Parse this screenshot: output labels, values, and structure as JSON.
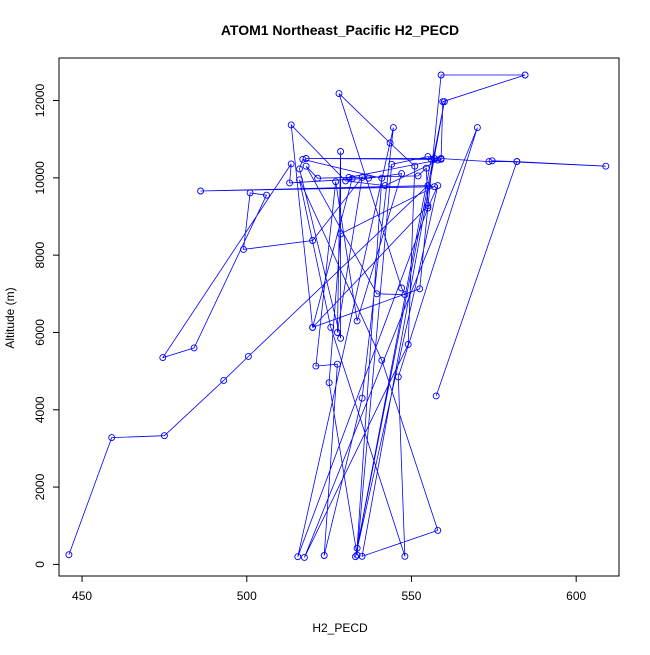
{
  "chart_data": {
    "type": "line",
    "title": "ATOM1 Northeast_Pacific H2_PECD",
    "xlabel": "H2_PECD",
    "ylabel": "Altitude (m)",
    "xlim": [
      443,
      613
    ],
    "ylim": [
      -300,
      13100
    ],
    "xticks": [
      450,
      500,
      550,
      600
    ],
    "yticks": [
      0,
      2000,
      4000,
      6000,
      8000,
      10000,
      12000
    ],
    "grid": false,
    "legend": "none",
    "color": "#0000ff",
    "series": [
      {
        "points": [
          [
            446,
            250
          ],
          [
            459,
            3280
          ],
          [
            475,
            3330
          ],
          [
            493,
            4760
          ],
          [
            500.5,
            5380
          ],
          [
            555,
            9800
          ],
          [
            486,
            9660
          ],
          [
            557,
            9770
          ],
          [
            528.5,
            8550
          ],
          [
            525,
            4700
          ],
          [
            533.5,
            240
          ],
          [
            544,
            10350
          ],
          [
            555,
            10550
          ],
          [
            559,
            10480
          ],
          [
            542,
            9800
          ],
          [
            530,
            9920
          ],
          [
            513.5,
            11370
          ],
          [
            520,
            6130
          ],
          [
            532,
            9980
          ],
          [
            531,
            10010
          ],
          [
            558,
            10460
          ],
          [
            557,
            10500
          ],
          [
            518,
            10500
          ],
          [
            556,
            10480
          ],
          [
            533.5,
            420
          ],
          [
            541,
            9990
          ],
          [
            517,
            10480
          ],
          [
            516,
            10230
          ],
          [
            528.5,
            5850
          ],
          [
            528.5,
            10680
          ],
          [
            527.5,
            6000
          ],
          [
            535,
            10010
          ],
          [
            520,
            8380
          ],
          [
            499,
            8150
          ],
          [
            501,
            9610
          ],
          [
            506,
            9550
          ],
          [
            484,
            5600
          ],
          [
            474.5,
            5350
          ],
          [
            513.5,
            10360
          ],
          [
            513,
            9870
          ],
          [
            537,
            9990
          ],
          [
            547,
            10110
          ],
          [
            533.5,
            6300
          ],
          [
            527,
            9900
          ],
          [
            521,
            5130
          ],
          [
            527.5,
            5180
          ],
          [
            523.5,
            230
          ],
          [
            535,
            4300
          ],
          [
            544.5,
            11300
          ],
          [
            515.5,
            200
          ],
          [
            555,
            9220
          ],
          [
            558,
            9800
          ],
          [
            533,
            200
          ],
          [
            560,
            11970
          ],
          [
            535,
            210
          ],
          [
            558,
            880
          ],
          [
            541,
            5280
          ],
          [
            516,
            9950
          ],
          [
            525.5,
            6130
          ],
          [
            548,
            210
          ],
          [
            546,
            4850
          ],
          [
            570,
            11300
          ],
          [
            517.5,
            180
          ],
          [
            549,
            5690
          ],
          [
            551,
            10300
          ],
          [
            543.5,
            10900
          ],
          [
            528,
            12180
          ],
          [
            547,
            7150
          ],
          [
            548,
            6980
          ],
          [
            539.5,
            7000
          ],
          [
            518,
            10300
          ],
          [
            521.5,
            9990
          ],
          [
            552,
            10050
          ],
          [
            554.5,
            10250
          ],
          [
            555,
            9280
          ],
          [
            520,
            6130
          ],
          [
            552.5,
            7130
          ],
          [
            559,
            12660
          ],
          [
            584.5,
            12660
          ],
          [
            559.5,
            11970
          ],
          [
            559,
            10500
          ],
          [
            573.5,
            10420
          ],
          [
            582,
            10420
          ],
          [
            609,
            10300
          ],
          [
            574.5,
            10440
          ],
          [
            582,
            10420
          ],
          [
            557.5,
            4360
          ]
        ]
      }
    ]
  }
}
